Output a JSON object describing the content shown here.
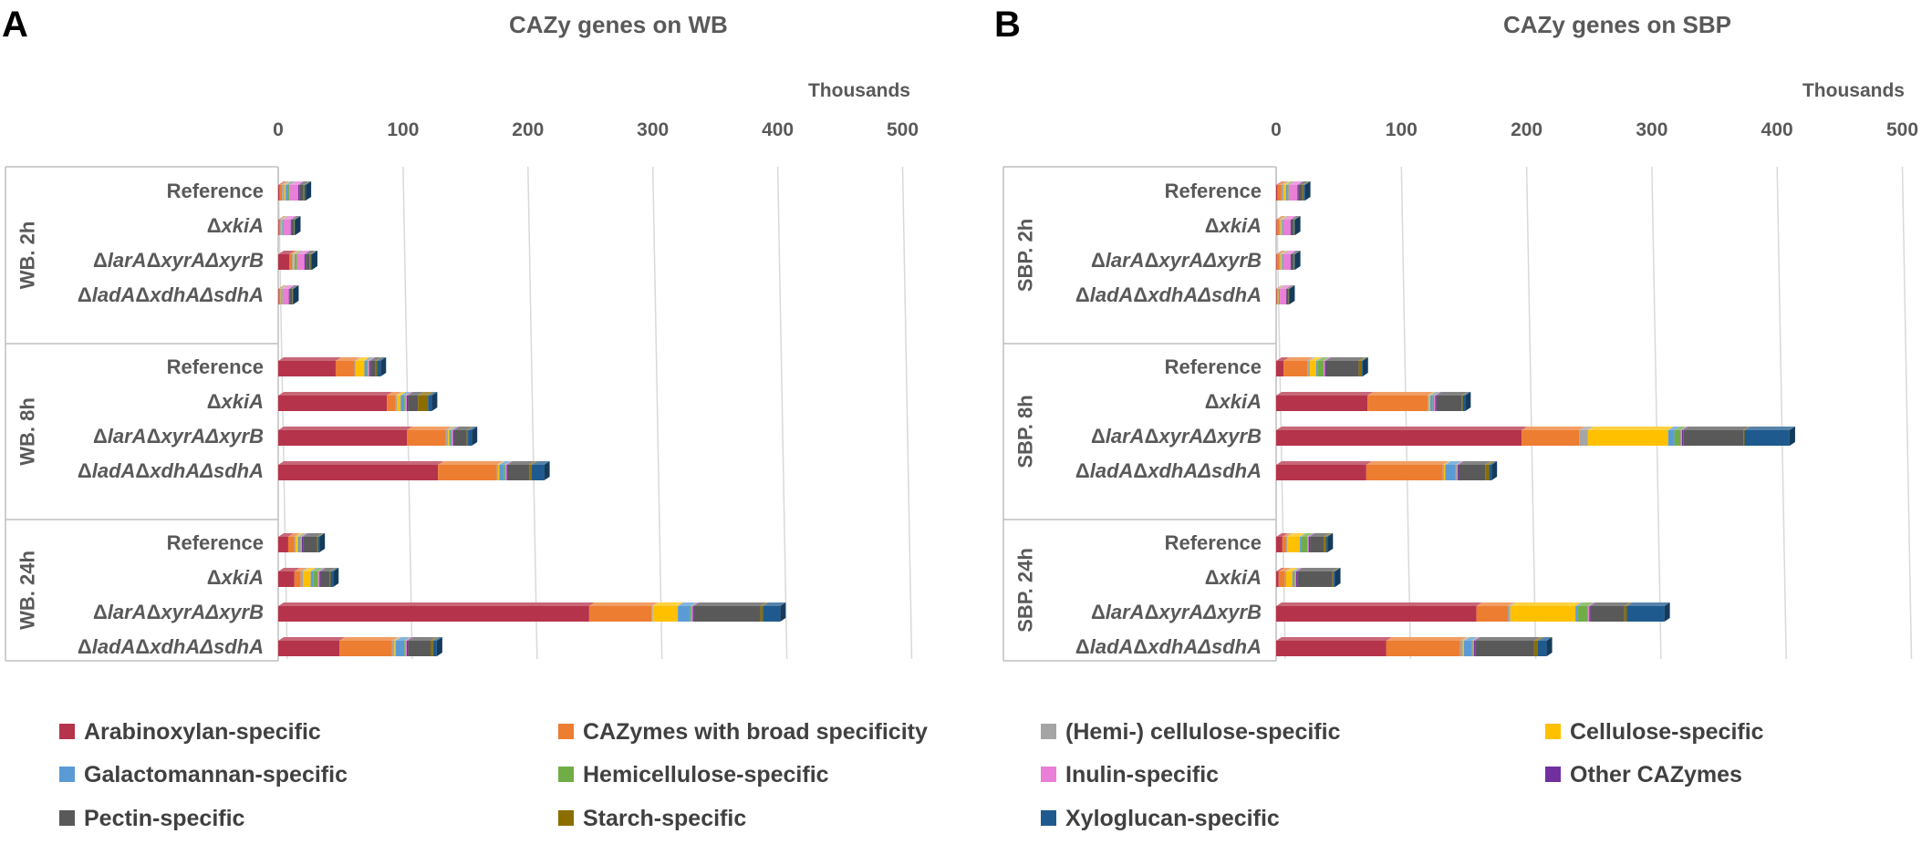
{
  "panels": [
    {
      "letter": "A",
      "title": "CAZy genes on WB",
      "units_label": "Thousands"
    },
    {
      "letter": "B",
      "title": "CAZy genes on SBP",
      "units_label": "Thousands"
    }
  ],
  "series_order": [
    "arabinoxylan",
    "broad",
    "hemi",
    "cellulose",
    "galacto",
    "hemicell",
    "inulin",
    "other",
    "pectin",
    "starch",
    "xylo"
  ],
  "colors": {
    "arabinoxylan": "#b5344b",
    "broad": "#ed7d31",
    "hemi": "#a5a5a5",
    "cellulose": "#ffc000",
    "galacto": "#5b9bd5",
    "hemicell": "#70ad47",
    "inulin": "#e97fd6",
    "other": "#7030a0",
    "pectin": "#595959",
    "starch": "#8c6d00",
    "xylo": "#1f5a8e"
  },
  "legend": [
    {
      "key": "arabinoxylan",
      "label": "Arabinoxylan-specific"
    },
    {
      "key": "broad",
      "label": "CAZymes with broad specificity"
    },
    {
      "key": "hemi",
      "label": "(Hemi-) cellulose-specific"
    },
    {
      "key": "cellulose",
      "label": "Cellulose-specific"
    },
    {
      "key": "galacto",
      "label": "Galactomannan-specific"
    },
    {
      "key": "hemicell",
      "label": "Hemicellulose-specific"
    },
    {
      "key": "inulin",
      "label": "Inulin-specific"
    },
    {
      "key": "other",
      "label": "Other CAZymes"
    },
    {
      "key": "pectin",
      "label": "Pectin-specific"
    },
    {
      "key": "starch",
      "label": "Starch-specific"
    },
    {
      "key": "xylo",
      "label": "Xyloglucan-specific"
    }
  ],
  "chart_data": [
    {
      "type": "bar",
      "orientation": "horizontal",
      "stacked": true,
      "title": "CAZy genes on WB",
      "xlabel": "Thousands",
      "xlim": [
        0,
        500
      ],
      "xticks": [
        "0",
        "100",
        "200",
        "300",
        "400",
        "500"
      ],
      "groups": [
        {
          "label": "WB. 2h",
          "rows": [
            {
              "pre": "",
              "it": "",
              "mid": "Reference",
              "it2": "",
              "values": {
                "arabinoxylan": 1,
                "broad": 2,
                "hemi": 2,
                "cellulose": 1,
                "galacto": 2,
                "hemicell": 1,
                "inulin": 7,
                "other": 1,
                "pectin": 3,
                "starch": 1,
                "xylo": 1
              }
            },
            {
              "pre": "Δ",
              "it": "xkiA",
              "mid": "",
              "it2": "",
              "values": {
                "arabinoxylan": 0.5,
                "broad": 1,
                "hemi": 1,
                "cellulose": 0.5,
                "galacto": 0.5,
                "hemicell": 0.5,
                "inulin": 6,
                "other": 0.5,
                "pectin": 2,
                "starch": 0.5,
                "xylo": 0.5
              }
            },
            {
              "pre": "Δ",
              "it": "larA",
              "mid": "Δ",
              "it2": "xyrAΔxyrB",
              "values": {
                "arabinoxylan": 9,
                "broad": 2,
                "hemi": 1,
                "cellulose": 1,
                "galacto": 1,
                "hemicell": 1,
                "inulin": 6,
                "other": 1,
                "pectin": 3,
                "starch": 1,
                "xylo": 1
              }
            },
            {
              "pre": "Δ",
              "it": "ladA",
              "mid": "Δ",
              "it2": "xdhAΔsdhA",
              "values": {
                "arabinoxylan": 0.5,
                "broad": 1,
                "hemi": 0.5,
                "cellulose": 0.5,
                "galacto": 0.5,
                "hemicell": 0.5,
                "inulin": 5,
                "other": 0.5,
                "pectin": 2,
                "starch": 0.5,
                "xylo": 0.5
              }
            }
          ]
        },
        {
          "label": "WB. 8h",
          "rows": [
            {
              "pre": "",
              "it": "",
              "mid": "Reference",
              "it2": "",
              "values": {
                "arabinoxylan": 46,
                "broad": 15,
                "hemi": 1,
                "cellulose": 7,
                "galacto": 2,
                "hemicell": 1,
                "inulin": 1,
                "other": 1,
                "pectin": 4,
                "starch": 1,
                "xylo": 3
              }
            },
            {
              "pre": "Δ",
              "it": "xkiA",
              "mid": "",
              "it2": "",
              "values": {
                "arabinoxylan": 87,
                "broad": 7,
                "hemi": 1,
                "cellulose": 3,
                "galacto": 3,
                "hemicell": 1,
                "inulin": 1,
                "other": 1,
                "pectin": 8,
                "starch": 8,
                "xylo": 3
              }
            },
            {
              "pre": "Δ",
              "it": "larA",
              "mid": "Δ",
              "it2": "xyrAΔxyrB",
              "values": {
                "arabinoxylan": 103,
                "broad": 31,
                "hemi": 2,
                "cellulose": 1,
                "galacto": 1,
                "hemicell": 1,
                "inulin": 1,
                "other": 1,
                "pectin": 10,
                "starch": 1,
                "xylo": 3
              }
            },
            {
              "pre": "Δ",
              "it": "ladA",
              "mid": "Δ",
              "it2": "xdhAΔsdhA",
              "values": {
                "arabinoxylan": 128,
                "broad": 47,
                "hemi": 1,
                "cellulose": 1,
                "galacto": 4,
                "hemicell": 1,
                "inulin": 1,
                "other": 1,
                "pectin": 17,
                "starch": 2,
                "xylo": 10
              }
            }
          ]
        },
        {
          "label": "WB. 24h",
          "rows": [
            {
              "pre": "",
              "it": "",
              "mid": "Reference",
              "it2": "",
              "values": {
                "arabinoxylan": 8,
                "broad": 5,
                "hemi": 1,
                "cellulose": 2,
                "galacto": 1,
                "hemicell": 1,
                "inulin": 1,
                "other": 1,
                "pectin": 11,
                "starch": 1,
                "xylo": 1
              }
            },
            {
              "pre": "Δ",
              "it": "xkiA",
              "mid": "",
              "it2": "",
              "values": {
                "arabinoxylan": 13,
                "broad": 5,
                "hemi": 2,
                "cellulose": 6,
                "galacto": 2,
                "hemicell": 4,
                "inulin": 1,
                "other": 1,
                "pectin": 7,
                "starch": 1,
                "xylo": 2
              }
            },
            {
              "pre": "Δ",
              "it": "larA",
              "mid": "Δ",
              "it2": "xyrAΔxyrB",
              "values": {
                "arabinoxylan": 249,
                "broad": 50,
                "hemi": 1,
                "cellulose": 20,
                "galacto": 10,
                "hemicell": 1,
                "inulin": 1,
                "other": 1,
                "pectin": 53,
                "starch": 2,
                "xylo": 14
              }
            },
            {
              "pre": "Δ",
              "it": "ladA",
              "mid": "Δ",
              "it2": "xdhAΔsdhA",
              "values": {
                "arabinoxylan": 49,
                "broad": 42,
                "hemi": 2,
                "cellulose": 1,
                "galacto": 7,
                "hemicell": 1,
                "inulin": 1,
                "other": 1,
                "pectin": 18,
                "starch": 2,
                "xylo": 3
              }
            }
          ]
        }
      ]
    },
    {
      "type": "bar",
      "orientation": "horizontal",
      "stacked": true,
      "title": "CAZy genes on SBP",
      "xlabel": "Thousands",
      "xlim": [
        0,
        500
      ],
      "xticks": [
        "0",
        "100",
        "200",
        "300",
        "400",
        "500"
      ],
      "groups": [
        {
          "label": "SBP. 2h",
          "rows": [
            {
              "pre": "",
              "it": "",
              "mid": "Reference",
              "it2": "",
              "values": {
                "arabinoxylan": 1,
                "broad": 3,
                "hemi": 2,
                "cellulose": 2,
                "galacto": 1,
                "hemicell": 1,
                "inulin": 7,
                "other": 1,
                "pectin": 3,
                "starch": 1,
                "xylo": 1
              }
            },
            {
              "pre": "Δ",
              "it": "xkiA",
              "mid": "",
              "it2": "",
              "values": {
                "arabinoxylan": 0.5,
                "broad": 2,
                "hemi": 1,
                "cellulose": 1,
                "galacto": 0.5,
                "hemicell": 0.5,
                "inulin": 6,
                "other": 0.5,
                "pectin": 2,
                "starch": 0.5,
                "xylo": 0.5
              }
            },
            {
              "pre": "Δ",
              "it": "larA",
              "mid": "Δ",
              "it2": "xyrAΔxyrB",
              "values": {
                "arabinoxylan": 0.5,
                "broad": 2,
                "hemi": 1,
                "cellulose": 1,
                "galacto": 0.5,
                "hemicell": 0.5,
                "inulin": 6,
                "other": 0.5,
                "pectin": 2,
                "starch": 0.5,
                "xylo": 0.5
              }
            },
            {
              "pre": "Δ",
              "it": "ladA",
              "mid": "Δ",
              "it2": "xdhAΔsdhA",
              "values": {
                "arabinoxylan": 0.5,
                "broad": 0.5,
                "hemi": 0.5,
                "cellulose": 0.5,
                "galacto": 0.5,
                "hemicell": 0.5,
                "inulin": 5,
                "other": 0.5,
                "pectin": 1,
                "starch": 0.5,
                "xylo": 0.5
              }
            }
          ]
        },
        {
          "label": "SBP. 8h",
          "rows": [
            {
              "pre": "",
              "it": "",
              "mid": "Reference",
              "it2": "",
              "values": {
                "arabinoxylan": 6,
                "broad": 19,
                "hemi": 2,
                "cellulose": 5,
                "galacto": 1,
                "hemicell": 5,
                "inulin": 1,
                "other": 1,
                "pectin": 26,
                "starch": 2,
                "xylo": 1
              }
            },
            {
              "pre": "Δ",
              "it": "xkiA",
              "mid": "",
              "it2": "",
              "values": {
                "arabinoxylan": 73,
                "broad": 48,
                "hemi": 1,
                "cellulose": 1,
                "galacto": 2,
                "hemicell": 1,
                "inulin": 1,
                "other": 1,
                "pectin": 20,
                "starch": 1,
                "xylo": 2
              }
            },
            {
              "pre": "Δ",
              "it": "larA",
              "mid": "Δ",
              "it2": "xyrAΔxyrB",
              "values": {
                "arabinoxylan": 196,
                "broad": 46,
                "hemi": 7,
                "cellulose": 64,
                "galacto": 5,
                "hemicell": 5,
                "inulin": 1,
                "other": 1,
                "pectin": 48,
                "starch": 1,
                "xylo": 36
              }
            },
            {
              "pre": "Δ",
              "it": "ladA",
              "mid": "Δ",
              "it2": "xdhAΔsdhA",
              "values": {
                "arabinoxylan": 72,
                "broad": 61,
                "hemi": 1,
                "cellulose": 1,
                "galacto": 8,
                "hemicell": 1,
                "inulin": 1,
                "other": 1,
                "pectin": 21,
                "starch": 3,
                "xylo": 2
              }
            }
          ]
        },
        {
          "label": "SBP. 24h",
          "rows": [
            {
              "pre": "",
              "it": "",
              "mid": "Reference",
              "it2": "",
              "values": {
                "arabinoxylan": 5,
                "broad": 3,
                "hemi": 1,
                "cellulose": 10,
                "galacto": 1,
                "hemicell": 5,
                "inulin": 1,
                "other": 1,
                "pectin": 11,
                "starch": 2,
                "xylo": 1
              }
            },
            {
              "pre": "Δ",
              "it": "xkiA",
              "mid": "",
              "it2": "",
              "values": {
                "arabinoxylan": 2,
                "broad": 5,
                "hemi": 1,
                "cellulose": 5,
                "galacto": 1,
                "hemicell": 1,
                "inulin": 1,
                "other": 1,
                "pectin": 28,
                "starch": 1,
                "xylo": 1
              }
            },
            {
              "pre": "Δ",
              "it": "larA",
              "mid": "Δ",
              "it2": "xyrAΔxyrB",
              "values": {
                "arabinoxylan": 160,
                "broad": 25,
                "hemi": 2,
                "cellulose": 52,
                "galacto": 2,
                "hemicell": 8,
                "inulin": 1,
                "other": 1,
                "pectin": 27,
                "starch": 2,
                "xylo": 30
              }
            },
            {
              "pre": "Δ",
              "it": "ladA",
              "mid": "Δ",
              "it2": "xdhAΔsdhA",
              "values": {
                "arabinoxylan": 88,
                "broad": 59,
                "hemi": 2,
                "cellulose": 1,
                "galacto": 6,
                "hemicell": 1,
                "inulin": 1,
                "other": 1,
                "pectin": 47,
                "starch": 3,
                "xylo": 7
              }
            }
          ]
        }
      ]
    }
  ]
}
